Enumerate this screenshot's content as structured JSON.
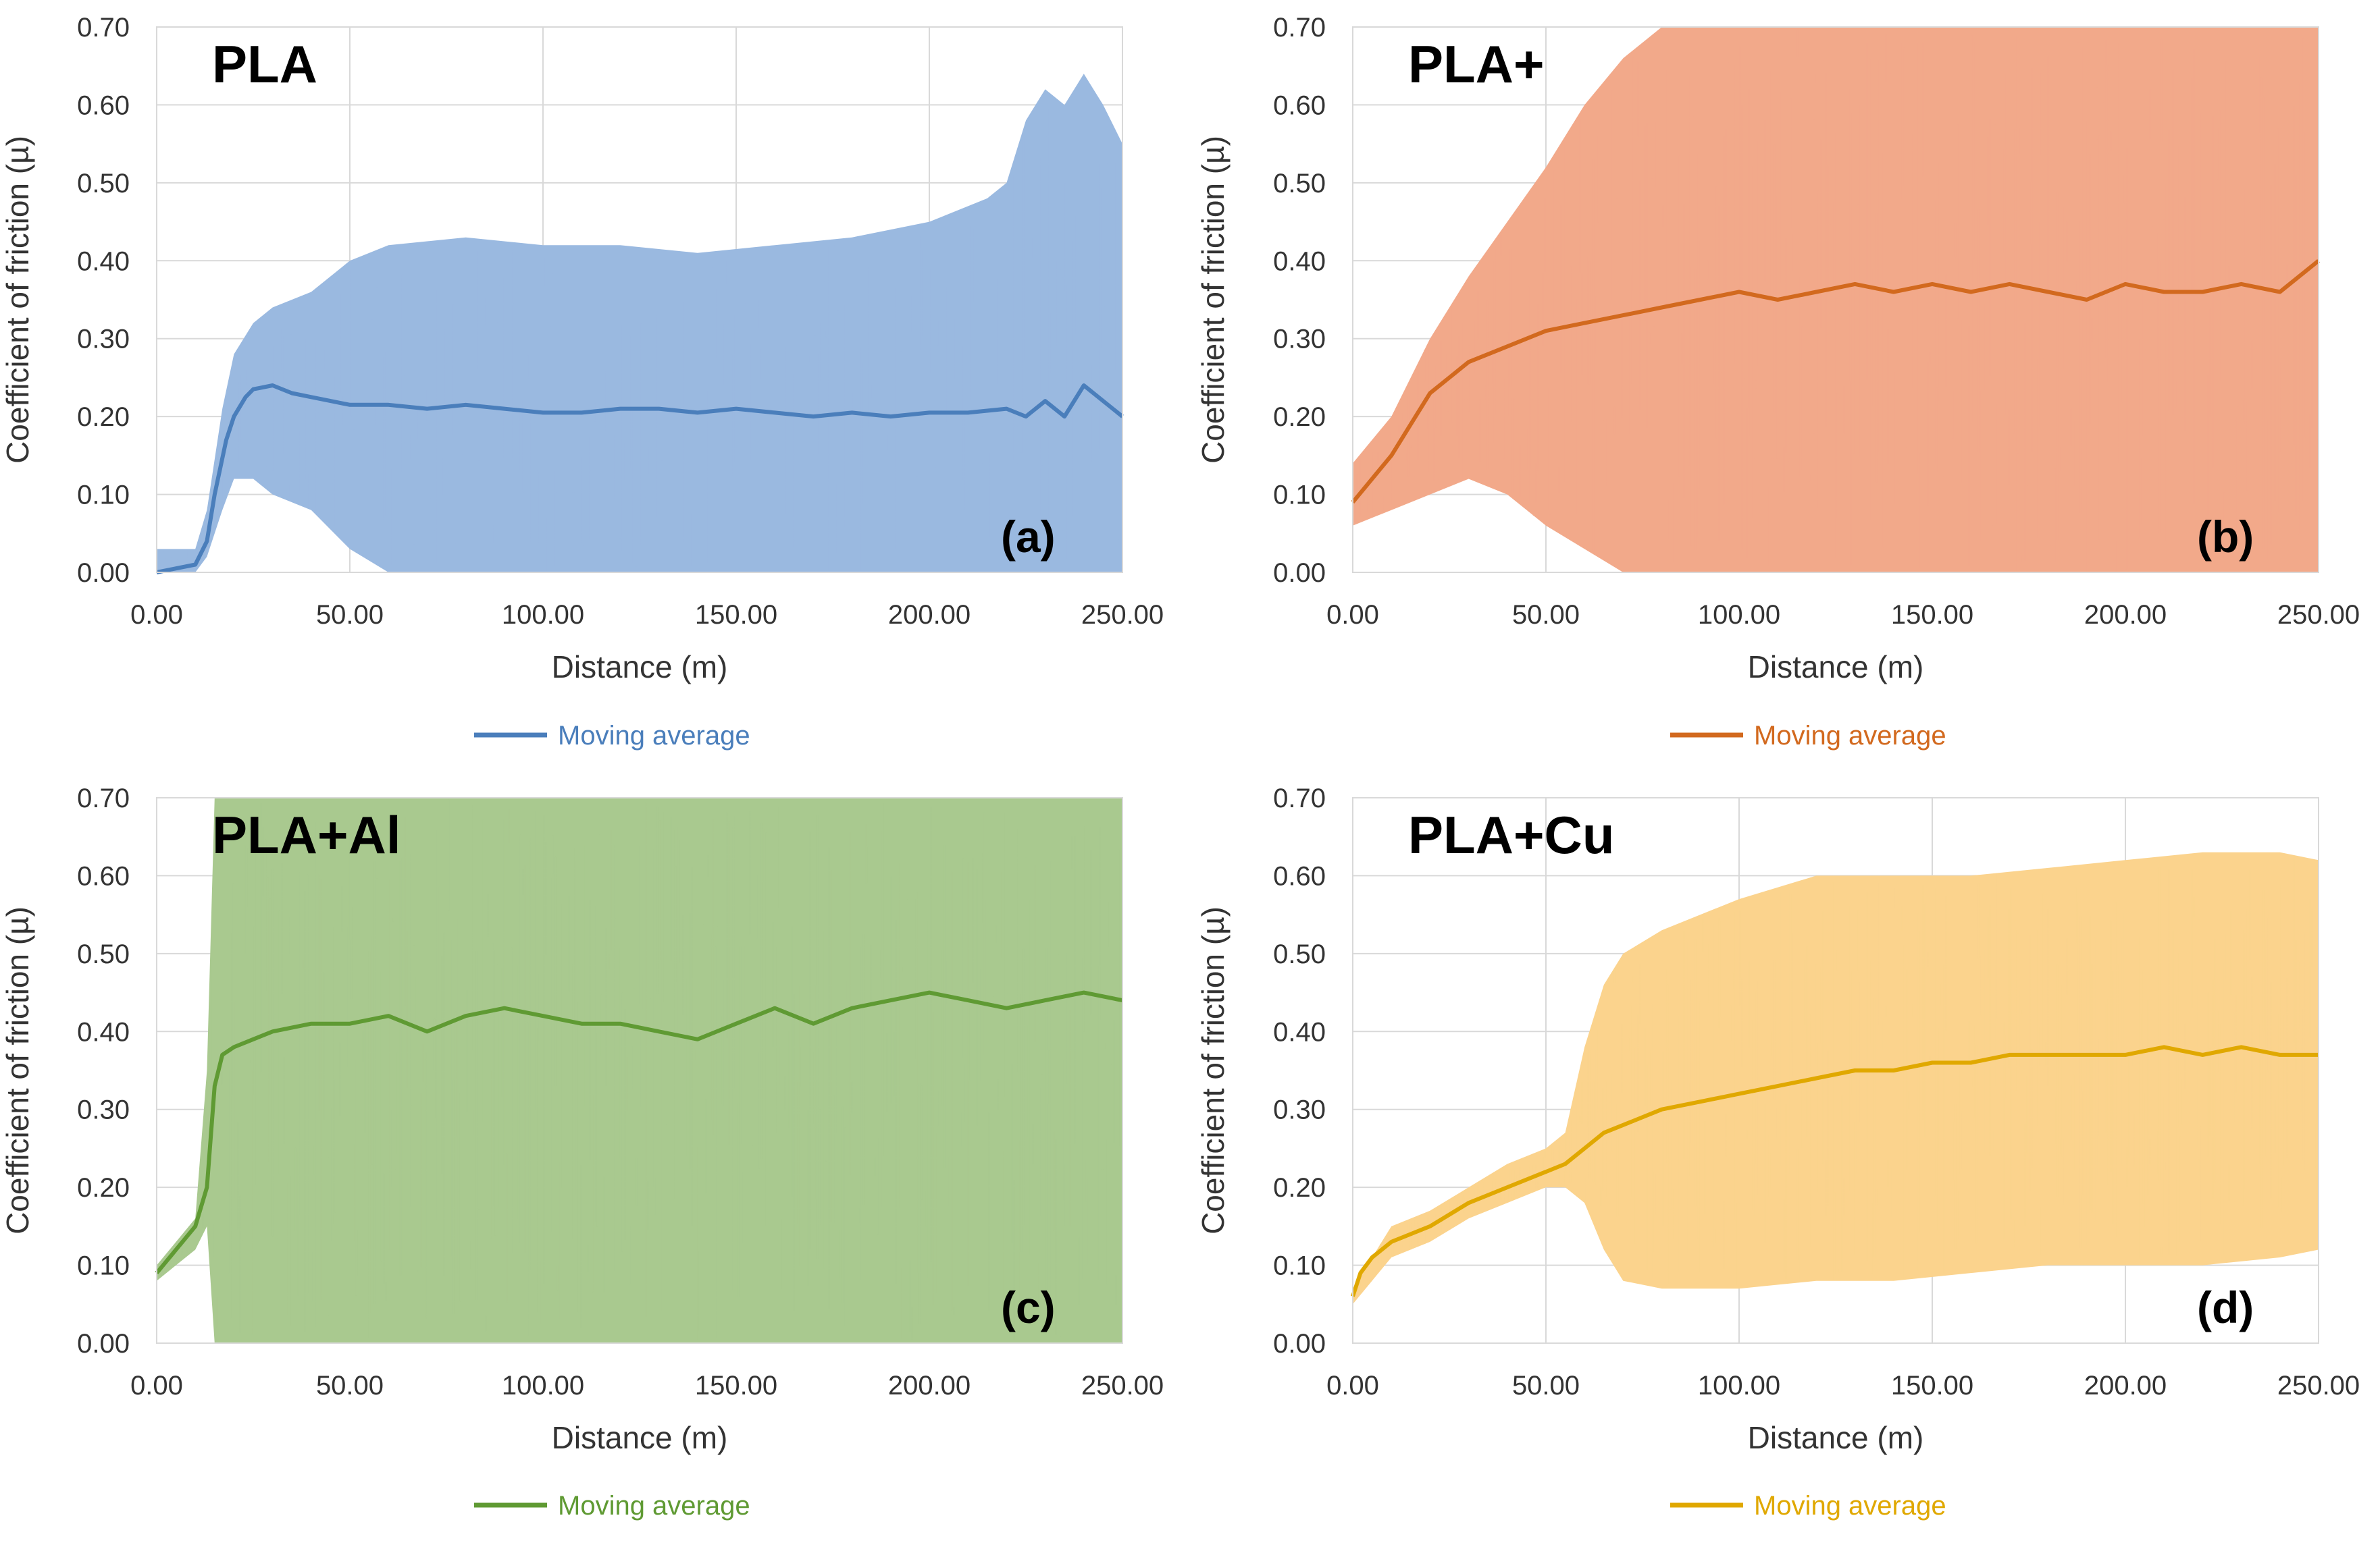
{
  "chart_data": [
    {
      "type": "line",
      "panel_title": "PLA",
      "panel_label": "(a)",
      "xlabel": "Distance (m)",
      "ylabel": "Coefficient of friction (µ)",
      "xlim": [
        0,
        250
      ],
      "ylim": [
        0,
        0.7
      ],
      "x_ticks": [
        "0.00",
        "50.00",
        "100.00",
        "150.00",
        "200.00",
        "250.00"
      ],
      "y_ticks": [
        "0.00",
        "0.10",
        "0.20",
        "0.30",
        "0.40",
        "0.50",
        "0.60",
        "0.70"
      ],
      "grid": true,
      "legend": {
        "label": "Moving average",
        "position": "bottom"
      },
      "colors": {
        "raw": "#9ab9e0",
        "avg": "#4a7ebb"
      },
      "series": [
        {
          "name": "Moving average",
          "x": [
            0,
            5,
            10,
            13,
            15,
            18,
            20,
            23,
            25,
            30,
            35,
            40,
            45,
            50,
            60,
            70,
            80,
            90,
            100,
            110,
            120,
            130,
            140,
            150,
            160,
            170,
            180,
            190,
            200,
            210,
            220,
            225,
            230,
            235,
            240,
            245,
            250
          ],
          "values": [
            0.0,
            0.005,
            0.01,
            0.04,
            0.1,
            0.17,
            0.2,
            0.225,
            0.235,
            0.24,
            0.23,
            0.225,
            0.22,
            0.215,
            0.215,
            0.21,
            0.215,
            0.21,
            0.205,
            0.205,
            0.21,
            0.21,
            0.205,
            0.21,
            0.205,
            0.2,
            0.205,
            0.2,
            0.205,
            0.205,
            0.21,
            0.2,
            0.22,
            0.2,
            0.24,
            0.22,
            0.2
          ]
        }
      ],
      "band": {
        "x": [
          0,
          10,
          13,
          17,
          20,
          25,
          30,
          40,
          50,
          60,
          80,
          100,
          120,
          140,
          160,
          180,
          200,
          215,
          220,
          225,
          230,
          235,
          240,
          245,
          250
        ],
        "lower": [
          0.0,
          0.0,
          0.02,
          0.08,
          0.12,
          0.12,
          0.1,
          0.08,
          0.03,
          0.0,
          0.0,
          0.0,
          0.0,
          0.0,
          0.0,
          0.0,
          0.0,
          0.0,
          0.0,
          0.0,
          0.0,
          0.0,
          0.0,
          0.0,
          0.0
        ],
        "upper": [
          0.03,
          0.03,
          0.08,
          0.21,
          0.28,
          0.32,
          0.34,
          0.36,
          0.4,
          0.42,
          0.43,
          0.42,
          0.42,
          0.41,
          0.42,
          0.43,
          0.45,
          0.48,
          0.5,
          0.58,
          0.62,
          0.6,
          0.64,
          0.6,
          0.55
        ]
      }
    },
    {
      "type": "line",
      "panel_title": "PLA+",
      "panel_label": "(b)",
      "xlabel": "Distance (m)",
      "ylabel": "Coefficient of friction (µ)",
      "xlim": [
        0,
        250
      ],
      "ylim": [
        0,
        0.7
      ],
      "x_ticks": [
        "0.00",
        "50.00",
        "100.00",
        "150.00",
        "200.00",
        "250.00"
      ],
      "y_ticks": [
        "0.00",
        "0.10",
        "0.20",
        "0.30",
        "0.40",
        "0.50",
        "0.60",
        "0.70"
      ],
      "grid": true,
      "legend": {
        "label": "Moving average",
        "position": "bottom"
      },
      "colors": {
        "raw": "#f2a98a",
        "avg": "#d2691e"
      },
      "series": [
        {
          "name": "Moving average",
          "x": [
            0,
            5,
            10,
            15,
            20,
            25,
            30,
            40,
            50,
            60,
            70,
            80,
            90,
            100,
            110,
            120,
            130,
            140,
            150,
            160,
            170,
            180,
            190,
            200,
            210,
            220,
            230,
            240,
            250
          ],
          "values": [
            0.09,
            0.12,
            0.15,
            0.19,
            0.23,
            0.25,
            0.27,
            0.29,
            0.31,
            0.32,
            0.33,
            0.34,
            0.35,
            0.36,
            0.35,
            0.36,
            0.37,
            0.36,
            0.37,
            0.36,
            0.37,
            0.36,
            0.35,
            0.37,
            0.36,
            0.36,
            0.37,
            0.36,
            0.4
          ]
        }
      ],
      "band": {
        "x": [
          0,
          10,
          20,
          30,
          40,
          50,
          60,
          70,
          80,
          90,
          100,
          120,
          150,
          200,
          250
        ],
        "lower": [
          0.06,
          0.08,
          0.1,
          0.12,
          0.1,
          0.06,
          0.03,
          0.0,
          0.0,
          0.0,
          0.0,
          0.0,
          0.0,
          0.0,
          0.0
        ],
        "upper": [
          0.14,
          0.2,
          0.3,
          0.38,
          0.45,
          0.52,
          0.6,
          0.66,
          0.7,
          0.7,
          0.7,
          0.7,
          0.7,
          0.7,
          0.7
        ]
      }
    },
    {
      "type": "line",
      "panel_title": "PLA+Al",
      "panel_label": "(c)",
      "xlabel": "Distance (m)",
      "ylabel": "Coefficient of friction (µ)",
      "xlim": [
        0,
        250
      ],
      "ylim": [
        0,
        0.7
      ],
      "x_ticks": [
        "0.00",
        "50.00",
        "100.00",
        "150.00",
        "200.00",
        "250.00"
      ],
      "y_ticks": [
        "0.00",
        "0.10",
        "0.20",
        "0.30",
        "0.40",
        "0.50",
        "0.60",
        "0.70"
      ],
      "grid": true,
      "legend": {
        "label": "Moving average",
        "position": "bottom"
      },
      "colors": {
        "raw": "#a9c98f",
        "avg": "#5f9a33"
      },
      "series": [
        {
          "name": "Moving average",
          "x": [
            0,
            5,
            10,
            13,
            15,
            17,
            20,
            25,
            30,
            40,
            50,
            60,
            70,
            80,
            90,
            100,
            110,
            120,
            130,
            140,
            150,
            160,
            170,
            180,
            190,
            200,
            210,
            220,
            230,
            240,
            250
          ],
          "values": [
            0.09,
            0.12,
            0.15,
            0.2,
            0.33,
            0.37,
            0.38,
            0.39,
            0.4,
            0.41,
            0.41,
            0.42,
            0.4,
            0.42,
            0.43,
            0.42,
            0.41,
            0.41,
            0.4,
            0.39,
            0.41,
            0.43,
            0.41,
            0.43,
            0.44,
            0.45,
            0.44,
            0.43,
            0.44,
            0.45,
            0.44
          ]
        }
      ],
      "band": {
        "x": [
          0,
          10,
          13,
          15,
          20,
          50,
          100,
          150,
          200,
          250
        ],
        "lower": [
          0.08,
          0.12,
          0.15,
          0.0,
          0.0,
          0.0,
          0.0,
          0.0,
          0.0,
          0.0
        ],
        "upper": [
          0.1,
          0.16,
          0.35,
          0.7,
          0.7,
          0.7,
          0.7,
          0.7,
          0.7,
          0.7
        ]
      }
    },
    {
      "type": "line",
      "panel_title": "PLA+Cu",
      "panel_label": "(d)",
      "xlabel": "Distance (m)",
      "ylabel": "Coefficient of friction (µ)",
      "xlim": [
        0,
        250
      ],
      "ylim": [
        0,
        0.7
      ],
      "x_ticks": [
        "0.00",
        "50.00",
        "100.00",
        "150.00",
        "200.00",
        "250.00"
      ],
      "y_ticks": [
        "0.00",
        "0.10",
        "0.20",
        "0.30",
        "0.40",
        "0.50",
        "0.60",
        "0.70"
      ],
      "grid": true,
      "legend": {
        "label": "Moving average",
        "position": "bottom"
      },
      "colors": {
        "raw": "#fbd38d",
        "avg": "#e0a800"
      },
      "series": [
        {
          "name": "Moving average",
          "x": [
            0,
            2,
            5,
            10,
            20,
            30,
            40,
            50,
            55,
            60,
            65,
            70,
            80,
            90,
            100,
            110,
            120,
            130,
            140,
            150,
            160,
            170,
            180,
            190,
            200,
            210,
            220,
            230,
            240,
            250
          ],
          "values": [
            0.06,
            0.09,
            0.11,
            0.13,
            0.15,
            0.18,
            0.2,
            0.22,
            0.23,
            0.25,
            0.27,
            0.28,
            0.3,
            0.31,
            0.32,
            0.33,
            0.34,
            0.35,
            0.35,
            0.36,
            0.36,
            0.37,
            0.37,
            0.37,
            0.37,
            0.38,
            0.37,
            0.38,
            0.37,
            0.37
          ]
        }
      ],
      "band": {
        "x": [
          0,
          10,
          20,
          30,
          40,
          50,
          55,
          60,
          65,
          70,
          80,
          100,
          120,
          140,
          160,
          180,
          200,
          220,
          240,
          250
        ],
        "lower": [
          0.05,
          0.11,
          0.13,
          0.16,
          0.18,
          0.2,
          0.2,
          0.18,
          0.12,
          0.08,
          0.07,
          0.07,
          0.08,
          0.08,
          0.09,
          0.1,
          0.1,
          0.1,
          0.11,
          0.12
        ],
        "upper": [
          0.07,
          0.15,
          0.17,
          0.2,
          0.23,
          0.25,
          0.27,
          0.38,
          0.46,
          0.5,
          0.53,
          0.57,
          0.6,
          0.6,
          0.6,
          0.61,
          0.62,
          0.63,
          0.63,
          0.62
        ]
      }
    }
  ]
}
